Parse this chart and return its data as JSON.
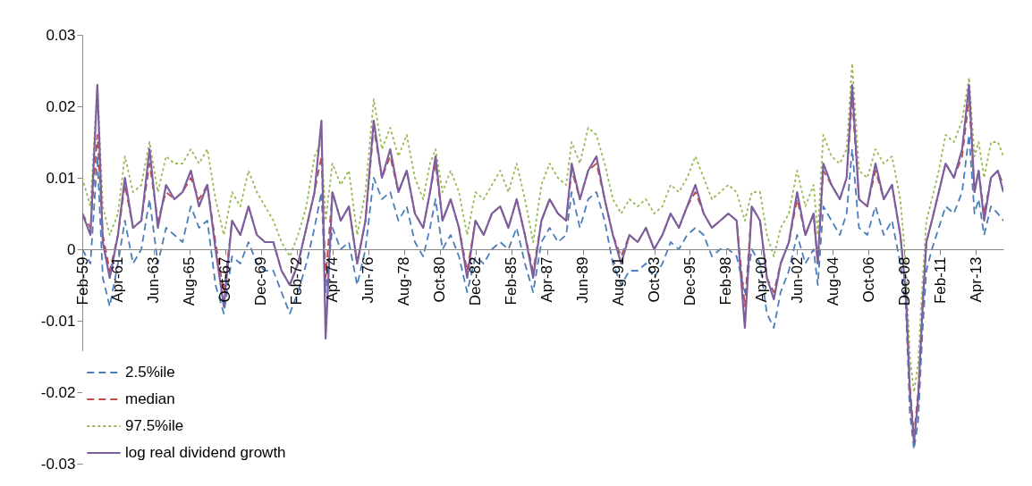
{
  "chart_data": {
    "type": "line",
    "legend": "bottom left",
    "grid": false,
    "marker": "none",
    "ylim": [
      -0.03,
      0.03
    ],
    "yticks": [
      -0.03,
      -0.02,
      -0.01,
      0,
      0.01,
      0.02,
      0.03
    ],
    "xlim": [
      "1959-02",
      "2014-12"
    ],
    "xticks": [
      {
        "value": "1959-02",
        "label": "Feb-59"
      },
      {
        "value": "1961-04",
        "label": "Apr-61"
      },
      {
        "value": "1963-06",
        "label": "Jun-63"
      },
      {
        "value": "1965-08",
        "label": "Aug-65"
      },
      {
        "value": "1967-10",
        "label": "Oct-67"
      },
      {
        "value": "1969-12",
        "label": "Dec-69"
      },
      {
        "value": "1972-02",
        "label": "Feb-72"
      },
      {
        "value": "1974-04",
        "label": "Apr-74"
      },
      {
        "value": "1976-06",
        "label": "Jun-76"
      },
      {
        "value": "1978-08",
        "label": "Aug-78"
      },
      {
        "value": "1980-10",
        "label": "Oct-80"
      },
      {
        "value": "1982-12",
        "label": "Dec-82"
      },
      {
        "value": "1985-02",
        "label": "Feb-85"
      },
      {
        "value": "1987-04",
        "label": "Apr-87"
      },
      {
        "value": "1989-06",
        "label": "Jun-89"
      },
      {
        "value": "1991-08",
        "label": "Aug-91"
      },
      {
        "value": "1993-10",
        "label": "Oct-93"
      },
      {
        "value": "1995-12",
        "label": "Dec-95"
      },
      {
        "value": "1998-02",
        "label": "Feb-98"
      },
      {
        "value": "2000-04",
        "label": "Apr-00"
      },
      {
        "value": "2002-06",
        "label": "Jun-02"
      },
      {
        "value": "2004-08",
        "label": "Aug-04"
      },
      {
        "value": "2006-10",
        "label": "Oct-06"
      },
      {
        "value": "2008-12",
        "label": "Dec-08"
      },
      {
        "value": "2011-02",
        "label": "Feb-11"
      },
      {
        "value": "2013-04",
        "label": "Apr-13"
      }
    ],
    "x": [
      "1959-02",
      "1959-08",
      "1960-01",
      "1960-05",
      "1960-10",
      "1961-04",
      "1961-09",
      "1962-03",
      "1962-09",
      "1963-03",
      "1963-09",
      "1964-03",
      "1964-09",
      "1965-03",
      "1965-09",
      "1966-03",
      "1966-09",
      "1967-03",
      "1967-09",
      "1968-03",
      "1968-09",
      "1969-03",
      "1969-09",
      "1970-03",
      "1970-09",
      "1971-03",
      "1971-09",
      "1972-03",
      "1972-09",
      "1973-03",
      "1973-08",
      "1973-11",
      "1974-04",
      "1974-10",
      "1975-04",
      "1975-10",
      "1976-04",
      "1976-10",
      "1977-04",
      "1977-10",
      "1978-04",
      "1978-10",
      "1979-04",
      "1979-10",
      "1980-03",
      "1980-07",
      "1980-12",
      "1981-06",
      "1981-12",
      "1982-06",
      "1982-12",
      "1983-06",
      "1983-12",
      "1984-06",
      "1984-12",
      "1985-06",
      "1985-12",
      "1986-06",
      "1986-12",
      "1987-06",
      "1987-12",
      "1988-06",
      "1988-10",
      "1989-04",
      "1989-10",
      "1990-04",
      "1990-10",
      "1991-04",
      "1991-10",
      "1992-04",
      "1992-10",
      "1993-04",
      "1993-10",
      "1994-04",
      "1994-10",
      "1995-04",
      "1995-10",
      "1996-04",
      "1996-10",
      "1997-04",
      "1997-10",
      "1998-04",
      "1998-10",
      "1999-04",
      "1999-09",
      "2000-03",
      "2000-08",
      "2001-01",
      "2001-06",
      "2001-12",
      "2002-06",
      "2002-12",
      "2003-06",
      "2003-09",
      "2004-01",
      "2004-07",
      "2005-01",
      "2005-06",
      "2005-10",
      "2006-03",
      "2006-09",
      "2007-03",
      "2007-09",
      "2008-03",
      "2008-09",
      "2009-01",
      "2009-04",
      "2009-07",
      "2009-10",
      "2010-01",
      "2010-04",
      "2010-08",
      "2011-01",
      "2011-06",
      "2011-12",
      "2012-06",
      "2012-11",
      "2013-03",
      "2013-06",
      "2013-10",
      "2014-03",
      "2014-08",
      "2014-12"
    ],
    "series": [
      {
        "name": "2.5%ile",
        "color": "#4a7ebb",
        "line_style": "dashed",
        "values": [
          0.0,
          -0.002,
          0.013,
          -0.004,
          -0.008,
          -0.002,
          0.004,
          -0.002,
          0.0,
          0.007,
          -0.002,
          0.003,
          0.002,
          0.001,
          0.006,
          0.003,
          0.004,
          -0.005,
          -0.009,
          -0.001,
          -0.002,
          0.001,
          -0.002,
          -0.003,
          -0.003,
          -0.006,
          -0.009,
          -0.006,
          -0.002,
          0.003,
          0.008,
          -0.006,
          0.003,
          0.0,
          0.001,
          -0.005,
          0.0,
          0.01,
          0.007,
          0.008,
          0.004,
          0.006,
          0.001,
          -0.001,
          0.003,
          0.007,
          0.0,
          0.002,
          -0.001,
          -0.006,
          -0.001,
          -0.002,
          0.0,
          0.001,
          0.0,
          0.003,
          -0.002,
          -0.006,
          0.001,
          0.003,
          0.001,
          0.002,
          0.008,
          0.003,
          0.007,
          0.008,
          0.004,
          -0.002,
          -0.005,
          -0.003,
          -0.003,
          -0.002,
          -0.004,
          -0.002,
          0.001,
          0.0,
          0.002,
          0.003,
          0.002,
          -0.001,
          0.0,
          0.0,
          -0.001,
          -0.006,
          0.0,
          -0.002,
          -0.009,
          -0.011,
          -0.006,
          -0.003,
          0.002,
          -0.002,
          0.0,
          -0.005,
          0.006,
          0.004,
          0.002,
          0.005,
          0.014,
          0.003,
          0.002,
          0.006,
          0.002,
          0.004,
          -0.002,
          -0.008,
          -0.023,
          -0.028,
          -0.024,
          -0.012,
          -0.003,
          0.0,
          0.003,
          0.006,
          0.005,
          0.008,
          0.016,
          0.005,
          0.007,
          0.002,
          0.006,
          0.005,
          0.004
        ]
      },
      {
        "name": "median",
        "color": "#be4b48",
        "line_style": "dashed",
        "values": [
          0.005,
          0.003,
          0.016,
          0.002,
          -0.003,
          0.002,
          0.009,
          0.003,
          0.004,
          0.012,
          0.004,
          0.008,
          0.007,
          0.008,
          0.01,
          0.007,
          0.009,
          0.001,
          -0.006,
          0.004,
          0.002,
          0.006,
          0.002,
          0.001,
          0.001,
          -0.003,
          -0.005,
          -0.002,
          0.003,
          0.008,
          0.013,
          -0.004,
          0.008,
          0.004,
          0.006,
          -0.002,
          0.004,
          0.017,
          0.01,
          0.013,
          0.008,
          0.011,
          0.005,
          0.003,
          0.008,
          0.012,
          0.004,
          0.007,
          0.003,
          -0.003,
          0.004,
          0.002,
          0.005,
          0.006,
          0.003,
          0.007,
          0.002,
          -0.003,
          0.004,
          0.007,
          0.005,
          0.004,
          0.011,
          0.007,
          0.011,
          0.012,
          0.007,
          0.002,
          -0.001,
          0.002,
          0.001,
          0.003,
          0.0,
          0.002,
          0.005,
          0.003,
          0.006,
          0.008,
          0.005,
          0.003,
          0.004,
          0.005,
          0.004,
          -0.008,
          0.006,
          0.004,
          -0.004,
          -0.006,
          -0.002,
          0.001,
          0.007,
          0.002,
          0.005,
          -0.002,
          0.011,
          0.009,
          0.007,
          0.01,
          0.021,
          0.007,
          0.006,
          0.011,
          0.007,
          0.009,
          0.002,
          -0.005,
          -0.019,
          -0.026,
          -0.02,
          -0.008,
          0.001,
          0.004,
          0.008,
          0.012,
          0.01,
          0.013,
          0.021,
          0.008,
          0.011,
          0.005,
          0.01,
          0.011,
          0.009
        ]
      },
      {
        "name": "97.5%ile",
        "color": "#98b954",
        "line_style": "dotted",
        "values": [
          0.01,
          0.006,
          0.023,
          0.006,
          0.002,
          0.005,
          0.013,
          0.008,
          0.009,
          0.015,
          0.008,
          0.013,
          0.012,
          0.012,
          0.014,
          0.012,
          0.014,
          0.007,
          0.002,
          0.008,
          0.006,
          0.011,
          0.008,
          0.006,
          0.004,
          0.001,
          -0.001,
          0.002,
          0.006,
          0.013,
          0.015,
          0.004,
          0.012,
          0.009,
          0.011,
          0.002,
          0.008,
          0.021,
          0.014,
          0.017,
          0.013,
          0.016,
          0.01,
          0.007,
          0.012,
          0.014,
          0.008,
          0.011,
          0.008,
          0.002,
          0.008,
          0.007,
          0.009,
          0.011,
          0.008,
          0.012,
          0.007,
          0.001,
          0.009,
          0.012,
          0.01,
          0.009,
          0.015,
          0.012,
          0.017,
          0.016,
          0.012,
          0.007,
          0.005,
          0.007,
          0.006,
          0.007,
          0.005,
          0.006,
          0.009,
          0.008,
          0.01,
          0.013,
          0.01,
          0.007,
          0.008,
          0.009,
          0.008,
          0.004,
          0.008,
          0.008,
          0.002,
          -0.001,
          0.003,
          0.005,
          0.011,
          0.006,
          0.009,
          0.002,
          0.016,
          0.013,
          0.012,
          0.014,
          0.026,
          0.011,
          0.01,
          0.014,
          0.012,
          0.013,
          0.007,
          -0.002,
          -0.015,
          -0.02,
          -0.016,
          -0.005,
          0.004,
          0.007,
          0.011,
          0.016,
          0.015,
          0.018,
          0.024,
          0.013,
          0.015,
          0.01,
          0.015,
          0.015,
          0.013
        ]
      },
      {
        "name": "log real dividend growth",
        "color": "#7d5fa0",
        "line_style": "solid",
        "values": [
          0.005,
          0.002,
          0.023,
          0.001,
          -0.004,
          0.002,
          0.01,
          0.003,
          0.004,
          0.014,
          0.003,
          0.009,
          0.007,
          0.008,
          0.011,
          0.006,
          0.009,
          0.0,
          -0.008,
          0.004,
          0.002,
          0.006,
          0.002,
          0.001,
          0.001,
          -0.003,
          -0.005,
          -0.002,
          0.003,
          0.008,
          0.018,
          -0.0125,
          0.008,
          0.004,
          0.006,
          -0.002,
          0.004,
          0.018,
          0.01,
          0.014,
          0.008,
          0.011,
          0.005,
          0.003,
          0.008,
          0.013,
          0.004,
          0.007,
          0.003,
          -0.004,
          0.004,
          0.002,
          0.005,
          0.006,
          0.003,
          0.007,
          0.002,
          -0.004,
          0.004,
          0.007,
          0.005,
          0.004,
          0.012,
          0.007,
          0.011,
          0.013,
          0.007,
          0.002,
          -0.002,
          0.002,
          0.001,
          0.003,
          0.0,
          0.002,
          0.005,
          0.003,
          0.006,
          0.009,
          0.005,
          0.003,
          0.004,
          0.005,
          0.004,
          -0.011,
          0.006,
          0.004,
          -0.004,
          -0.007,
          -0.002,
          0.001,
          0.008,
          0.002,
          0.005,
          -0.002,
          0.012,
          0.009,
          0.007,
          0.01,
          0.023,
          0.007,
          0.006,
          0.012,
          0.007,
          0.009,
          0.002,
          -0.006,
          -0.02,
          -0.027,
          -0.021,
          -0.009,
          0.001,
          0.004,
          0.008,
          0.012,
          0.01,
          0.014,
          0.023,
          0.008,
          0.011,
          0.004,
          0.01,
          0.011,
          0.008
        ]
      }
    ]
  }
}
